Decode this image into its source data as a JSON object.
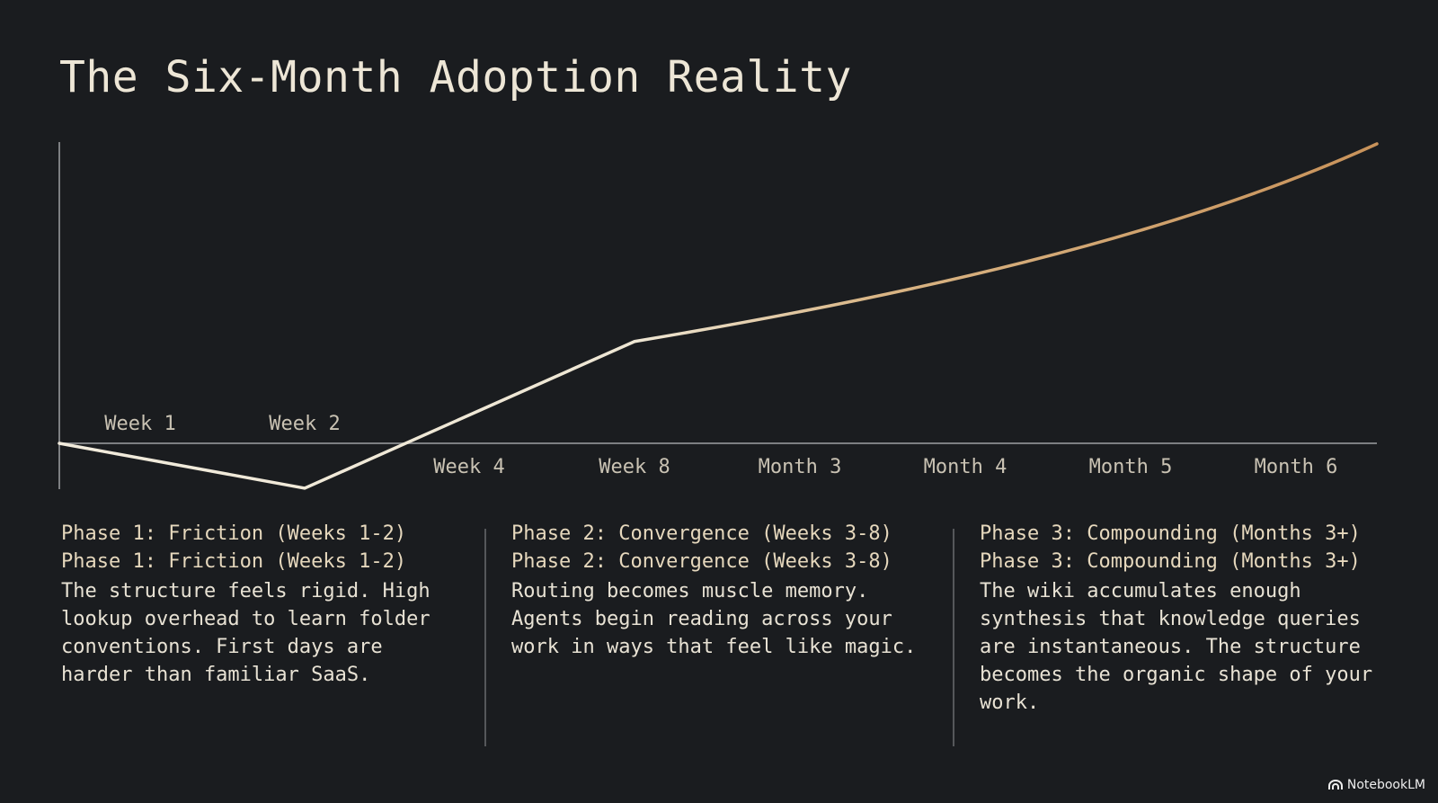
{
  "title": "The Six-Month Adoption Reality",
  "chart_data": {
    "type": "line",
    "x_labels": [
      "Week 1",
      "Week 2",
      "Week 4",
      "Week 8",
      "Month 3",
      "Month 4",
      "Month 5",
      "Month 6"
    ],
    "series": [
      {
        "points": [
          {
            "x": "Week 1",
            "y": 0
          },
          {
            "x": "Week 2",
            "y": -0.15
          },
          {
            "x": "Week 8",
            "y": 0.34
          },
          {
            "x": "Month 6",
            "y": 1.0
          }
        ]
      }
    ],
    "colors": {
      "line_start": "#f1ebdc",
      "line_end": "#c8925a",
      "axis": "#7d7f82"
    }
  },
  "phases": [
    {
      "title": "Phase 1: Friction (Weeks 1-2)",
      "text": "The structure feels rigid. High lookup overhead to learn folder conventions. First days are harder than familiar SaaS."
    },
    {
      "title": "Phase 2: Convergence (Weeks 3-8)",
      "text": "Routing becomes muscle memory. Agents begin reading across your work in ways that feel like magic."
    },
    {
      "title": "Phase 3: Compounding (Months 3+)",
      "text": "The wiki accumulates enough synthesis that knowledge queries are instantaneous. The structure becomes the organic shape of your work."
    }
  ],
  "brand": {
    "label": "NotebookLM",
    "icon": "notebooklm-logo-icon"
  }
}
